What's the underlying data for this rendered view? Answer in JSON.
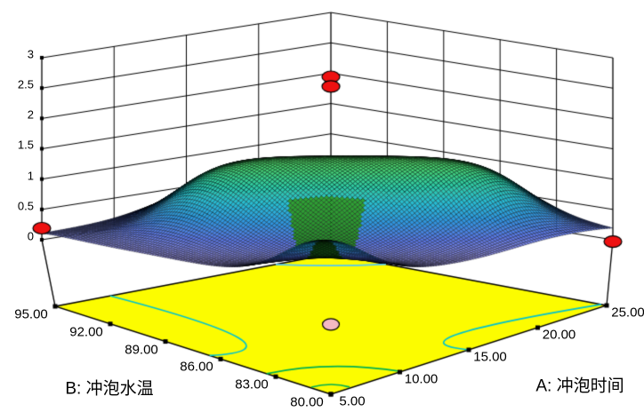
{
  "chart_data": {
    "type": "surface3d",
    "description": "3D response surface plot with projected contour floor",
    "x_axis": {
      "label": "A: 冲泡时间",
      "tick_labels": [
        "5.00",
        "10.00",
        "15.00",
        "20.00",
        "25.00"
      ],
      "min": 5,
      "max": 25
    },
    "y_axis": {
      "label": "B: 冲泡水温",
      "tick_labels": [
        "95.00",
        "92.00",
        "89.00",
        "86.00",
        "83.00",
        "80.00"
      ],
      "min": 80,
      "max": 95
    },
    "z_axis": {
      "tick_labels": [
        "0",
        "0.5",
        "1",
        "1.5",
        "2",
        "2.5",
        "3"
      ],
      "min": 0,
      "max": 3,
      "step": 0.5
    },
    "surface_model": {
      "note": "z(u,v); u=(A-5)/20, v=(B-80)/15; ridge along u+v=1 diagonal",
      "ridge_base": 0.1,
      "ridge_amp": 1.25,
      "ridge_edge_left": 0.54,
      "ridge_edge_right": 0.7,
      "ridge_steepness": 0.09,
      "sigma_front": 0.34,
      "sigma_front_taper": 0.45,
      "sigma_back": 0.55,
      "bump_front": [
        0.72,
        0.04
      ],
      "bump_back": [
        0.5,
        0.0196
      ],
      "bump_right": [
        0.05,
        0.04
      ],
      "corner_heights": {
        "left_A5_B95": 0.1,
        "front_A5_B80": 0.72,
        "right_A25_B80": 0.16,
        "back_A25_B95": 0.55,
        "peak_center": 1.35
      }
    },
    "design_points": [
      {
        "A": 5,
        "B": 95,
        "z": 0.19
      },
      {
        "A": 25,
        "B": 95,
        "z": 1.94
      },
      {
        "A": 25,
        "B": 95,
        "z": 1.78
      },
      {
        "A": 25,
        "B": 80,
        "z": -0.03
      }
    ],
    "floor_points_uv": [
      [
        1.0,
        1.0
      ],
      [
        0.41,
        0.41
      ]
    ],
    "floor_contours": [
      {
        "color": "#00c2cf",
        "bezier_uv": [
          [
            0.2,
            1.0
          ],
          [
            0.24,
            0.29
          ],
          [
            0.0,
            0.44
          ]
        ]
      },
      {
        "color": "#00c2cf",
        "bezier_uv": [
          [
            1.0,
            0.02
          ],
          [
            0.41,
            0.23
          ],
          [
            0.5,
            0.0
          ]
        ]
      },
      {
        "color": "#00b050",
        "bezier_uv": [
          [
            0.0,
            0.233
          ],
          [
            0.196,
            0.205
          ],
          [
            0.257,
            0.0
          ]
        ]
      },
      {
        "color": "#00b050",
        "bezier_uv": [
          [
            0.005,
            0.076
          ],
          [
            0.072,
            0.07
          ],
          [
            0.075,
            0.007
          ]
        ]
      },
      {
        "color": "#55c8f0",
        "bezier_uv": [
          [
            0.8,
            1.0
          ],
          [
            0.88,
            0.88
          ],
          [
            1.0,
            0.8
          ]
        ]
      }
    ],
    "style": {
      "floor_color": "#fcfc00",
      "design_point_color": "#ee1111",
      "floor_point_color": "#f4b9c3",
      "wireframe_color": "rgba(0,0,0,0.78)",
      "grid_color": "#000000",
      "dip_color_dark": "#123f12",
      "dip_color_light": "#2fa435",
      "colormap": [
        [
          0.03,
          "#9a95ec"
        ],
        [
          0.25,
          "#5b78e8"
        ],
        [
          0.5,
          "#2e96e0"
        ],
        [
          0.75,
          "#27bcd4"
        ],
        [
          1.0,
          "#30cba4"
        ],
        [
          1.2,
          "#46d077"
        ],
        [
          1.35,
          "#55d565"
        ]
      ],
      "left_wall_divisions": 4,
      "right_wall_divisions": 5
    }
  }
}
